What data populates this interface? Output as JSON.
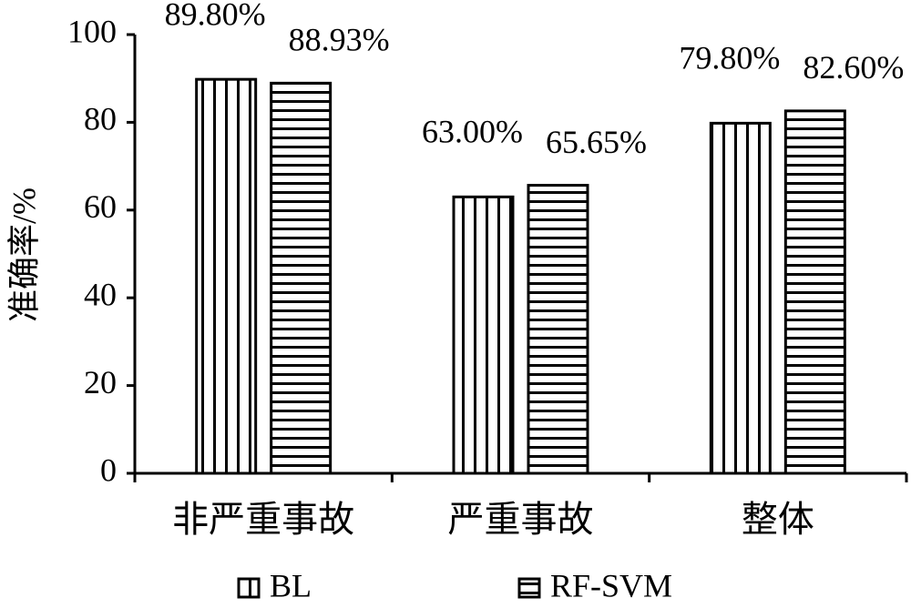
{
  "chart_data": {
    "type": "bar",
    "y_label": "准确率/%",
    "categories": [
      "非严重事故",
      "严重事故",
      "整体"
    ],
    "series": [
      {
        "name": "BL",
        "color": "#000000",
        "pattern": "vertical",
        "values": [
          89.8,
          63.0,
          79.8
        ],
        "value_labels": [
          "89.80%",
          "63.00%",
          "79.80%"
        ]
      },
      {
        "name": "RF-SVM",
        "color": "#000000",
        "pattern": "horizontal",
        "values": [
          88.93,
          65.65,
          82.6
        ],
        "value_labels": [
          "88.93%",
          "65.65%",
          "82.60%"
        ]
      }
    ],
    "ylim": [
      0,
      100
    ],
    "yticks": [
      0,
      20,
      40,
      60,
      80,
      100
    ],
    "grid": false
  }
}
